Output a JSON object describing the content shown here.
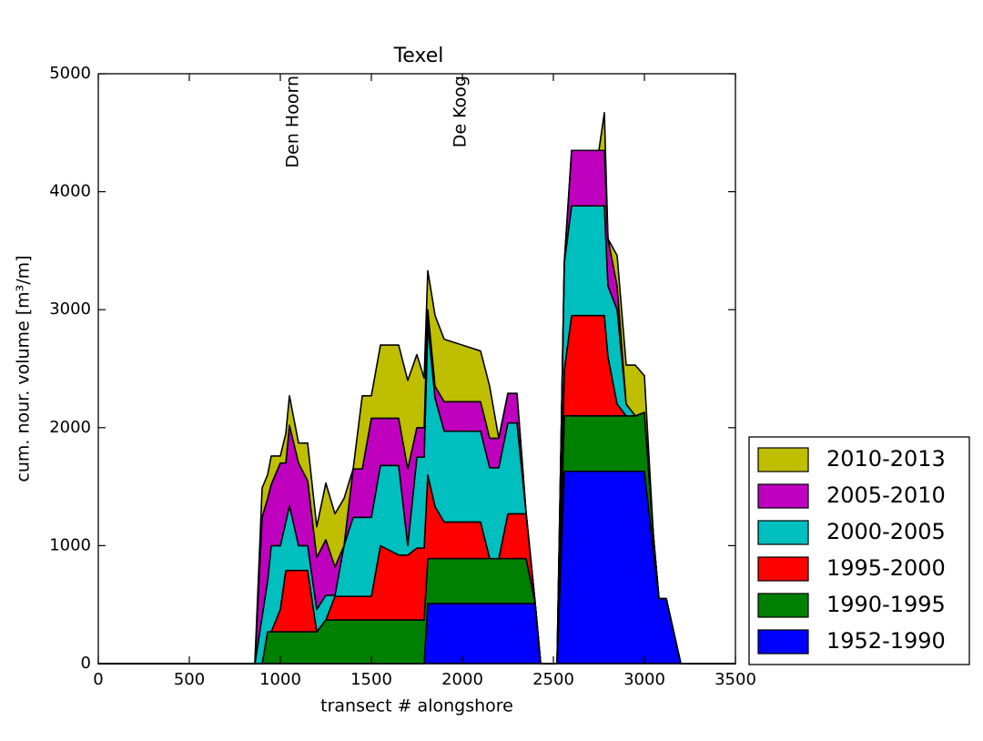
{
  "chart_data": {
    "type": "stacked_area",
    "title": "Texel",
    "x_label": "transect # alongshore",
    "y_label": "cum. nour. volume [m³/m]",
    "xlim": [
      0,
      3500
    ],
    "ylim": [
      0,
      5000
    ],
    "xticks": [
      0,
      500,
      1000,
      1500,
      2000,
      2500,
      3000,
      3500
    ],
    "yticks": [
      0,
      1000,
      2000,
      3000,
      4000,
      5000
    ],
    "grid": false,
    "legend_position": "outside-lower-right",
    "legend_order": "reversed",
    "annotations": [
      {
        "text": "Den Hoorn",
        "x": 1070
      },
      {
        "text": "De Koog",
        "x": 1990
      }
    ],
    "x": [
      0,
      400,
      860,
      900,
      930,
      950,
      1000,
      1030,
      1050,
      1100,
      1150,
      1200,
      1250,
      1300,
      1350,
      1400,
      1450,
      1500,
      1550,
      1650,
      1700,
      1750,
      1790,
      1810,
      1850,
      1900,
      2100,
      2150,
      2200,
      2250,
      2300,
      2350,
      2400,
      2430,
      2520,
      2560,
      2600,
      2750,
      2780,
      2800,
      2850,
      2900,
      2950,
      3000,
      3050,
      3080,
      3120,
      3200,
      3500
    ],
    "series": [
      {
        "name": "1952-1990",
        "color": "#0000ff",
        "values": [
          0,
          0,
          0,
          0,
          0,
          0,
          0,
          0,
          0,
          0,
          0,
          0,
          0,
          0,
          0,
          0,
          0,
          0,
          0,
          0,
          0,
          0,
          0,
          510,
          510,
          510,
          510,
          510,
          510,
          510,
          510,
          510,
          510,
          0,
          0,
          1630,
          1630,
          1630,
          1630,
          1630,
          1630,
          1630,
          1630,
          1630,
          950,
          550,
          550,
          0,
          0
        ]
      },
      {
        "name": "1990-1995",
        "color": "#008000",
        "values": [
          0,
          0,
          0,
          0,
          270,
          270,
          270,
          270,
          270,
          270,
          270,
          270,
          370,
          370,
          370,
          370,
          370,
          370,
          370,
          370,
          370,
          370,
          370,
          380,
          380,
          380,
          380,
          380,
          380,
          380,
          380,
          380,
          0,
          0,
          0,
          470,
          470,
          470,
          470,
          470,
          470,
          470,
          470,
          500,
          120,
          0,
          0,
          0,
          0
        ]
      },
      {
        "name": "1995-2000",
        "color": "#ff0000",
        "values": [
          0,
          0,
          0,
          0,
          0,
          0,
          190,
          520,
          520,
          520,
          520,
          0,
          0,
          200,
          200,
          200,
          200,
          200,
          630,
          550,
          550,
          610,
          610,
          710,
          440,
          310,
          310,
          0,
          0,
          380,
          380,
          380,
          0,
          0,
          0,
          390,
          850,
          850,
          850,
          500,
          100,
          0,
          0,
          0,
          0,
          0,
          0,
          0,
          0
        ]
      },
      {
        "name": "2000-2005",
        "color": "#00bfbf",
        "values": [
          0,
          0,
          0,
          400,
          430,
          730,
          540,
          410,
          550,
          210,
          210,
          190,
          210,
          10,
          430,
          670,
          670,
          670,
          680,
          760,
          80,
          770,
          770,
          1280,
          920,
          770,
          770,
          770,
          770,
          770,
          770,
          10,
          0,
          0,
          0,
          910,
          930,
          930,
          930,
          600,
          800,
          100,
          0,
          0,
          0,
          0,
          0,
          0,
          0
        ]
      },
      {
        "name": "2005-2010",
        "color": "#bf00bf",
        "values": [
          0,
          0,
          0,
          840,
          700,
          520,
          700,
          500,
          680,
          700,
          550,
          440,
          470,
          240,
          0,
          410,
          410,
          840,
          400,
          400,
          650,
          250,
          250,
          120,
          100,
          250,
          250,
          250,
          250,
          250,
          250,
          0,
          0,
          0,
          0,
          0,
          470,
          470,
          470,
          400,
          200,
          0,
          0,
          0,
          0,
          0,
          0,
          0,
          0
        ]
      },
      {
        "name": "2010-2013",
        "color": "#bfbf00",
        "values": [
          0,
          0,
          0,
          250,
          200,
          240,
          60,
          250,
          250,
          170,
          320,
          260,
          480,
          450,
          400,
          0,
          620,
          190,
          620,
          620,
          750,
          620,
          420,
          330,
          600,
          530,
          430,
          440,
          0,
          0,
          0,
          0,
          0,
          0,
          0,
          0,
          0,
          0,
          320,
          0,
          260,
          330,
          430,
          310,
          0,
          0,
          0,
          0,
          0
        ]
      }
    ]
  }
}
